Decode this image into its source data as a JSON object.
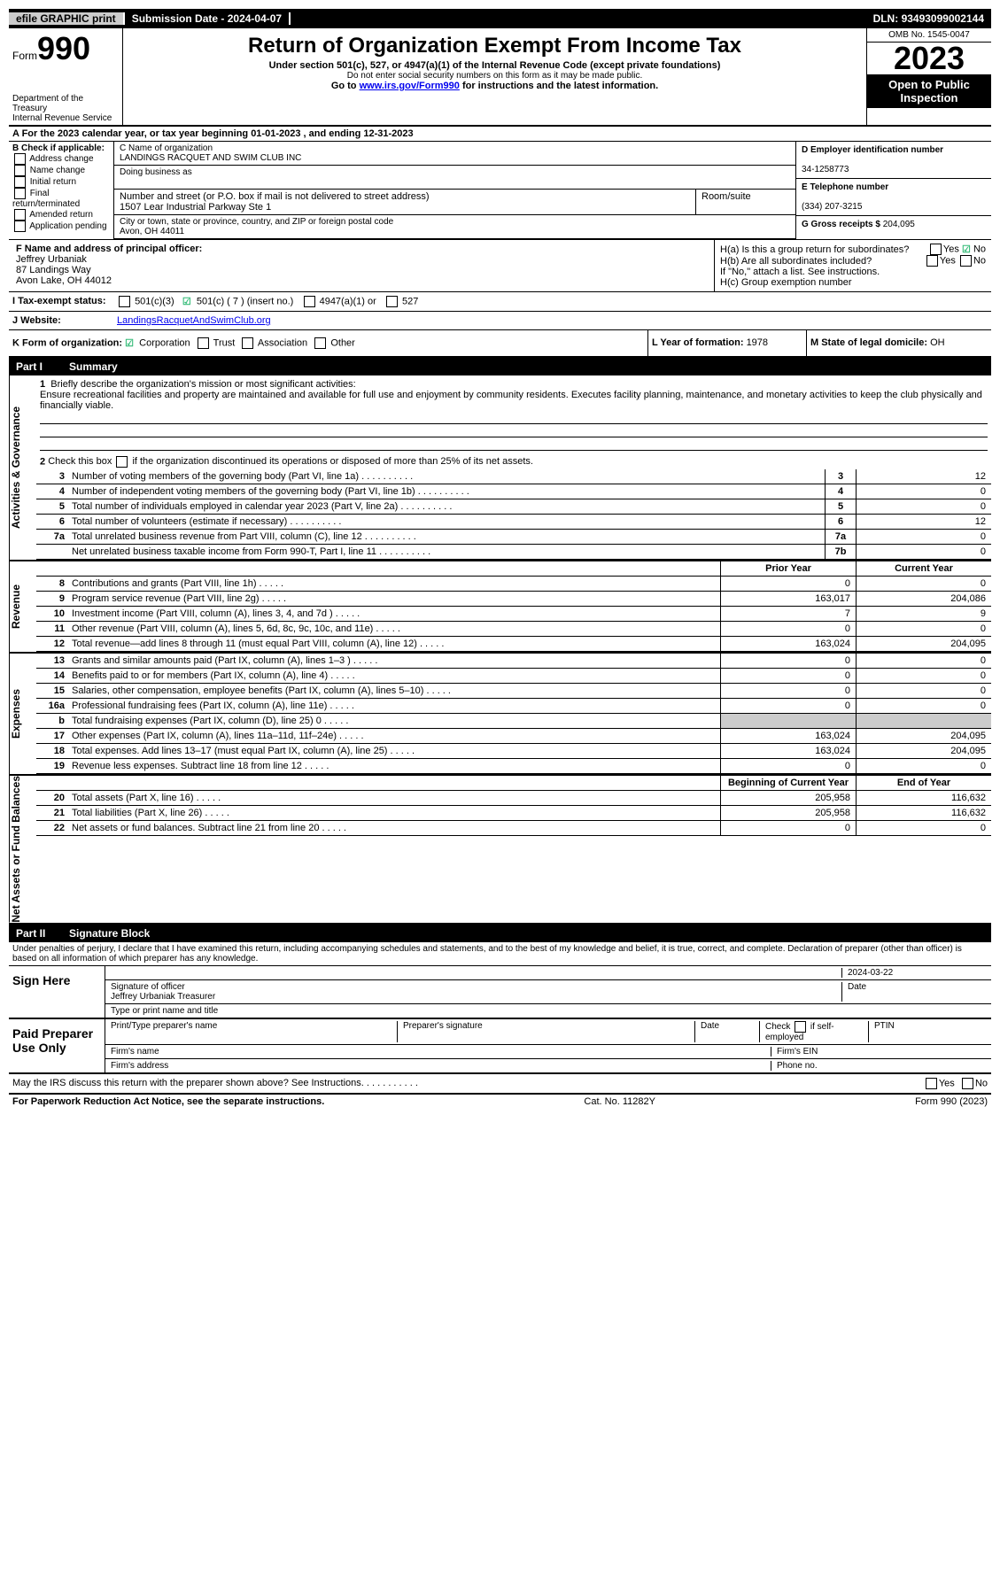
{
  "topbar": {
    "efile": "efile GRAPHIC print",
    "subdate_lbl": "Submission Date - ",
    "subdate": "2024-04-07",
    "dln_lbl": "DLN: ",
    "dln": "93493099002144"
  },
  "header": {
    "form_label": "Form",
    "form_no": "990",
    "dept": "Department of the Treasury\nInternal Revenue Service",
    "title": "Return of Organization Exempt From Income Tax",
    "sub1": "Under section 501(c), 527, or 4947(a)(1) of the Internal Revenue Code (except private foundations)",
    "sub2": "Do not enter social security numbers on this form as it may be made public.",
    "goto_pre": "Go to ",
    "goto_url": "www.irs.gov/Form990",
    "goto_post": " for instructions and the latest information.",
    "omb": "OMB No. 1545-0047",
    "year": "2023",
    "inspect": "Open to Public Inspection"
  },
  "line_a": "A  For the 2023 calendar year, or tax year beginning 01-01-2023   , and ending 12-31-2023",
  "sectionB": {
    "b_lbl": "B Check if applicable:",
    "b_items": [
      "Address change",
      "Name change",
      "Initial return",
      "Final return/terminated",
      "Amended return",
      "Application pending"
    ],
    "c_name_lbl": "C Name of organization",
    "c_name": "LANDINGS RACQUET AND SWIM CLUB INC",
    "dba_lbl": "Doing business as",
    "street_lbl": "Number and street (or P.O. box if mail is not delivered to street address)",
    "street": "1507 Lear Industrial Parkway Ste 1",
    "room_lbl": "Room/suite",
    "city_lbl": "City or town, state or province, country, and ZIP or foreign postal code",
    "city": "Avon, OH  44011",
    "d_ein_lbl": "D Employer identification number",
    "d_ein": "34-1258773",
    "e_tel_lbl": "E Telephone number",
    "e_tel": "(334) 207-3215",
    "g_lbl": "G Gross receipts $ ",
    "g_val": "204,095"
  },
  "sectionF": {
    "f_lbl": "F  Name and address of principal officer:",
    "f_name": "Jeffrey Urbaniak",
    "f_addr1": "87 Landings Way",
    "f_addr2": "Avon Lake, OH  44012",
    "ha_lbl": "H(a)  Is this a group return for subordinates?",
    "hb_lbl": "H(b)  Are all subordinates included?",
    "hb_note": "If \"No,\" attach a list. See instructions.",
    "hc_lbl": "H(c)  Group exemption number",
    "yes": "Yes",
    "no": "No"
  },
  "statusRow": {
    "i_lbl": "I  Tax-exempt status:",
    "opt1": "501(c)(3)",
    "opt2": "501(c) ( 7 ) (insert no.)",
    "opt3": "4947(a)(1) or",
    "opt4": "527",
    "j_lbl": "J  Website:",
    "j_val": "LandingsRacquetAndSwimClub.org"
  },
  "kRow": {
    "k_lbl": "K Form of organization:",
    "k_opts": [
      "Corporation",
      "Trust",
      "Association",
      "Other"
    ],
    "l_lbl": "L Year of formation: ",
    "l_val": "1978",
    "m_lbl": "M State of legal domicile: ",
    "m_val": "OH"
  },
  "part1": {
    "hdr_part": "Part I",
    "hdr_title": "Summary",
    "vert1": "Activities & Governance",
    "vert2": "Revenue",
    "vert3": "Expenses",
    "vert4": "Net Assets or Fund Balances",
    "l1_lbl": "1",
    "l1_text": "Briefly describe the organization's mission or most significant activities:",
    "l1_mission": "Ensure recreational facilities and property are maintained and available for full use and enjoyment by community residents. Executes facility planning, maintenance, and monetary activities to keep the club physically and financially viable.",
    "l2_lbl": "2",
    "l2_text": "Check this box     if the organization discontinued its operations or disposed of more than 25% of its net assets.",
    "rows_single": [
      {
        "n": "3",
        "t": "Number of voting members of the governing body (Part VI, line 1a)",
        "box": "3",
        "v": "12"
      },
      {
        "n": "4",
        "t": "Number of independent voting members of the governing body (Part VI, line 1b)",
        "box": "4",
        "v": "0"
      },
      {
        "n": "5",
        "t": "Total number of individuals employed in calendar year 2023 (Part V, line 2a)",
        "box": "5",
        "v": "0"
      },
      {
        "n": "6",
        "t": "Total number of volunteers (estimate if necessary)",
        "box": "6",
        "v": "12"
      },
      {
        "n": "7a",
        "t": "Total unrelated business revenue from Part VIII, column (C), line 12",
        "box": "7a",
        "v": "0"
      },
      {
        "n": "",
        "t": "Net unrelated business taxable income from Form 990-T, Part I, line 11",
        "box": "7b",
        "v": "0"
      }
    ],
    "hdr_prior": "Prior Year",
    "hdr_current": "Current Year",
    "rev_rows": [
      {
        "n": "8",
        "t": "Contributions and grants (Part VIII, line 1h)",
        "c1": "0",
        "c2": "0"
      },
      {
        "n": "9",
        "t": "Program service revenue (Part VIII, line 2g)",
        "c1": "163,017",
        "c2": "204,086"
      },
      {
        "n": "10",
        "t": "Investment income (Part VIII, column (A), lines 3, 4, and 7d )",
        "c1": "7",
        "c2": "9"
      },
      {
        "n": "11",
        "t": "Other revenue (Part VIII, column (A), lines 5, 6d, 8c, 9c, 10c, and 11e)",
        "c1": "0",
        "c2": "0"
      },
      {
        "n": "12",
        "t": "Total revenue—add lines 8 through 11 (must equal Part VIII, column (A), line 12)",
        "c1": "163,024",
        "c2": "204,095"
      }
    ],
    "exp_rows": [
      {
        "n": "13",
        "t": "Grants and similar amounts paid (Part IX, column (A), lines 1–3 )",
        "c1": "0",
        "c2": "0"
      },
      {
        "n": "14",
        "t": "Benefits paid to or for members (Part IX, column (A), line 4)",
        "c1": "0",
        "c2": "0"
      },
      {
        "n": "15",
        "t": "Salaries, other compensation, employee benefits (Part IX, column (A), lines 5–10)",
        "c1": "0",
        "c2": "0"
      },
      {
        "n": "16a",
        "t": "Professional fundraising fees (Part IX, column (A), line 11e)",
        "c1": "0",
        "c2": "0"
      },
      {
        "n": "b",
        "t": "Total fundraising expenses (Part IX, column (D), line 25) 0",
        "c1": "",
        "c2": "",
        "gray": true
      },
      {
        "n": "17",
        "t": "Other expenses (Part IX, column (A), lines 11a–11d, 11f–24e)",
        "c1": "163,024",
        "c2": "204,095"
      },
      {
        "n": "18",
        "t": "Total expenses. Add lines 13–17 (must equal Part IX, column (A), line 25)",
        "c1": "163,024",
        "c2": "204,095"
      },
      {
        "n": "19",
        "t": "Revenue less expenses. Subtract line 18 from line 12",
        "c1": "0",
        "c2": "0"
      }
    ],
    "hdr_begin": "Beginning of Current Year",
    "hdr_end": "End of Year",
    "net_rows": [
      {
        "n": "20",
        "t": "Total assets (Part X, line 16)",
        "c1": "205,958",
        "c2": "116,632"
      },
      {
        "n": "21",
        "t": "Total liabilities (Part X, line 26)",
        "c1": "205,958",
        "c2": "116,632"
      },
      {
        "n": "22",
        "t": "Net assets or fund balances. Subtract line 21 from line 20",
        "c1": "0",
        "c2": "0"
      }
    ]
  },
  "part2": {
    "hdr_part": "Part II",
    "hdr_title": "Signature Block",
    "intro": "Under penalties of perjury, I declare that I have examined this return, including accompanying schedules and statements, and to the best of my knowledge and belief, it is true, correct, and complete. Declaration of preparer (other than officer) is based on all information of which preparer has any knowledge.",
    "sign_here": "Sign Here",
    "sig_date": "2024-03-22",
    "sig_officer_lbl": "Signature of officer",
    "sig_name": "Jeffrey Urbaniak  Treasurer",
    "sig_type_lbl": "Type or print name and title",
    "paid": "Paid Preparer Use Only",
    "p_name_lbl": "Print/Type preparer's name",
    "p_sig_lbl": "Preparer's signature",
    "p_date_lbl": "Date",
    "p_check_lbl": "Check        if self-employed",
    "p_ptin_lbl": "PTIN",
    "firm_name_lbl": "Firm's name",
    "firm_ein_lbl": "Firm's EIN",
    "firm_addr_lbl": "Firm's address",
    "firm_phone_lbl": "Phone no."
  },
  "discuss": {
    "text": "May the IRS discuss this return with the preparer shown above? See Instructions.",
    "yes": "Yes",
    "no": "No"
  },
  "footer": {
    "left": "For Paperwork Reduction Act Notice, see the separate instructions.",
    "mid": "Cat. No. 11282Y",
    "right": "Form 990 (2023)"
  }
}
